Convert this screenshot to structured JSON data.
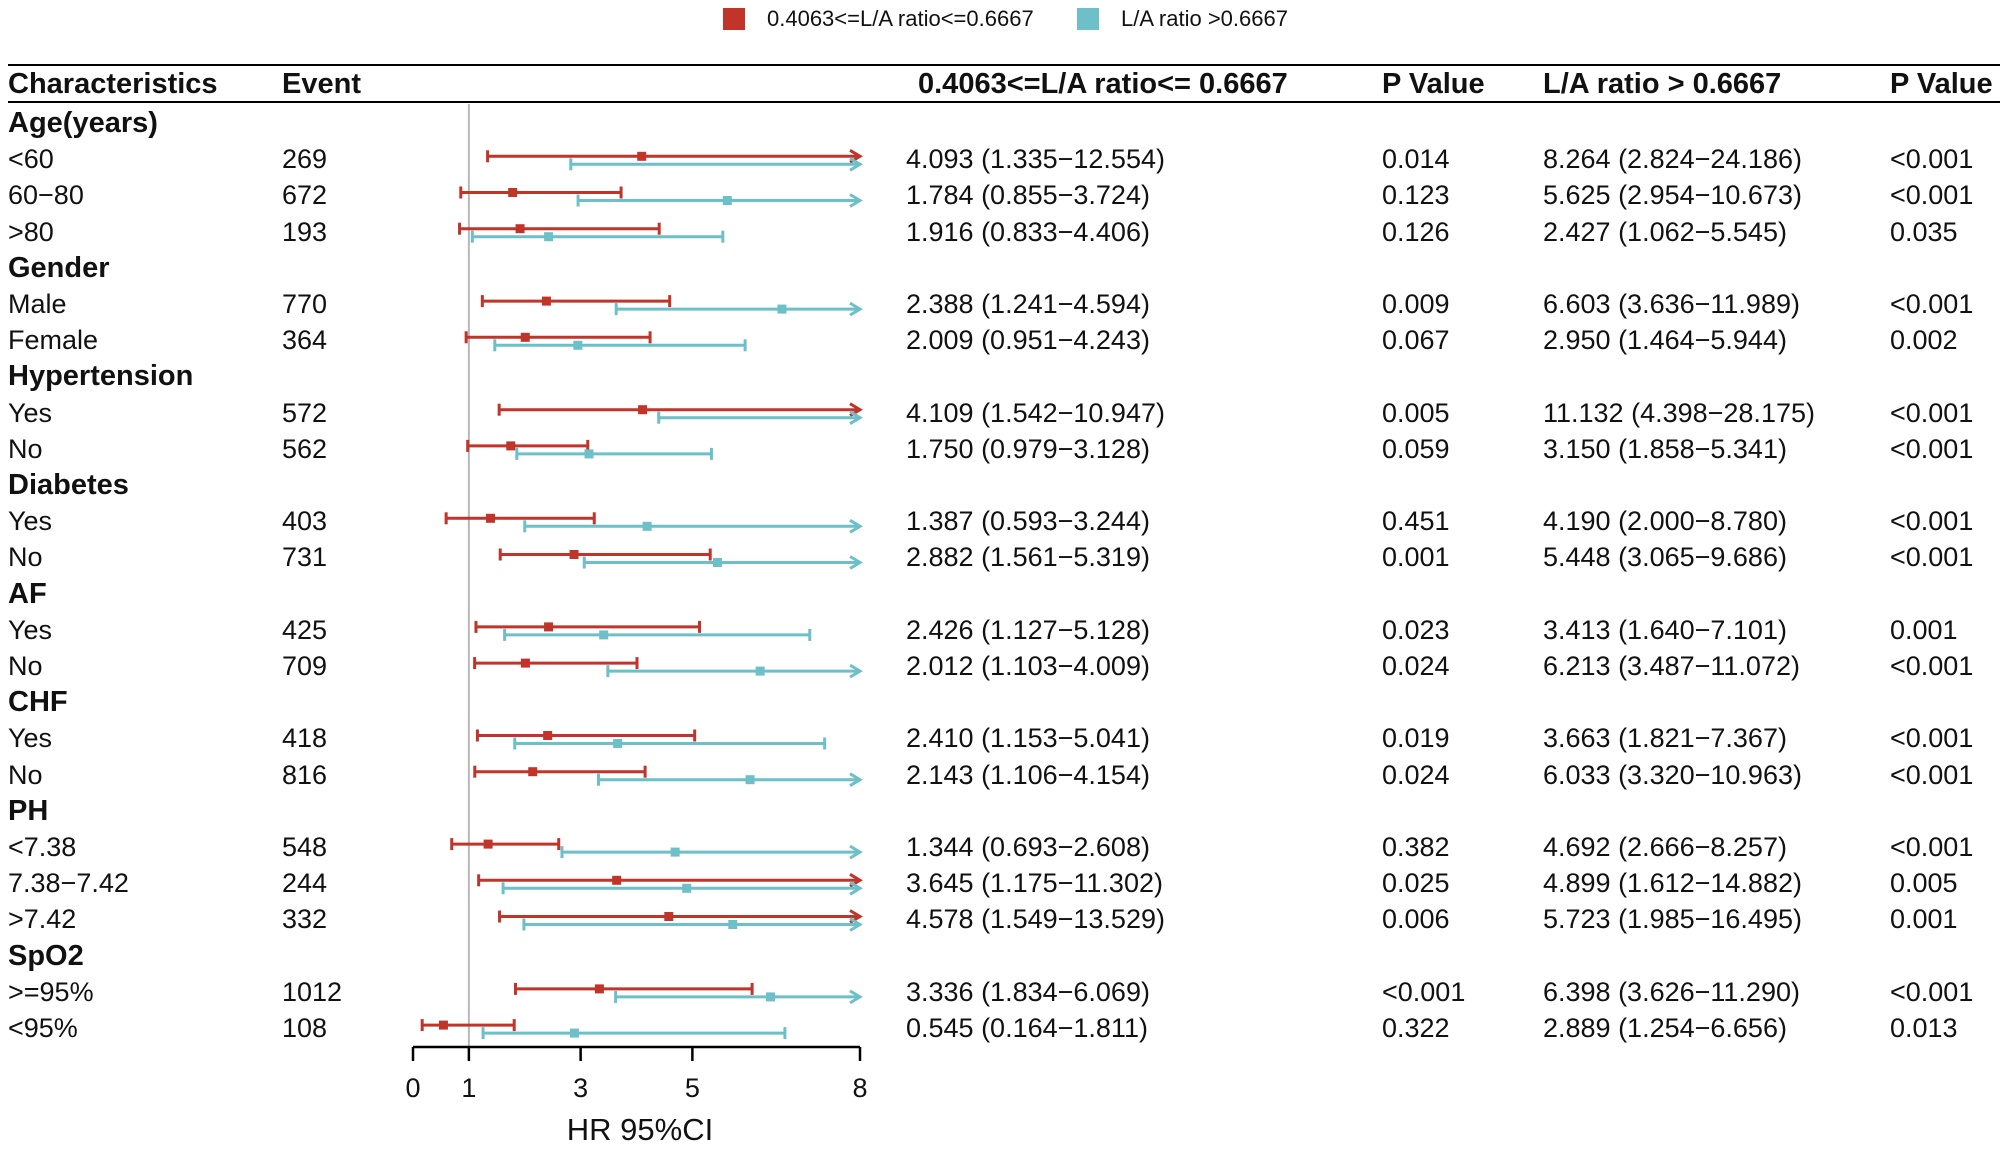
{
  "legend": {
    "mid": {
      "label": "0.4063<=L/A ratio<=0.6667",
      "color": "#c0342a"
    },
    "high": {
      "label": "L/A ratio >0.6667",
      "color": "#6dbfc8"
    }
  },
  "headers": {
    "characteristics": "Characteristics",
    "event": "Event",
    "mid_hr": "0.4063<=L/A ratio<= 0.6667",
    "mid_p": "P Value",
    "high_hr": "L/A ratio >  0.6667",
    "high_p": "P Value"
  },
  "rows": [
    {
      "type": "group",
      "label": "Age(years)"
    },
    {
      "type": "sub",
      "label": "<60",
      "event": "269",
      "mid_text": "4.093 (1.335−12.554)",
      "mid_p": "0.014",
      "high_text": "8.264 (2.824−24.186)",
      "high_p": "<0.001"
    },
    {
      "type": "sub",
      "label": "60−80",
      "event": "672",
      "mid_text": "1.784 (0.855−3.724)",
      "mid_p": "0.123",
      "high_text": "5.625 (2.954−10.673)",
      "high_p": "<0.001"
    },
    {
      "type": "sub",
      "label": ">80",
      "event": "193",
      "mid_text": "1.916 (0.833−4.406)",
      "mid_p": "0.126",
      "high_text": "2.427 (1.062−5.545)",
      "high_p": "0.035"
    },
    {
      "type": "group",
      "label": "Gender"
    },
    {
      "type": "sub",
      "label": "Male",
      "event": "770",
      "mid_text": "2.388 (1.241−4.594)",
      "mid_p": "0.009",
      "high_text": "6.603 (3.636−11.989)",
      "high_p": "<0.001"
    },
    {
      "type": "sub",
      "label": "Female",
      "event": "364",
      "mid_text": "2.009 (0.951−4.243)",
      "mid_p": "0.067",
      "high_text": "2.950 (1.464−5.944)",
      "high_p": "0.002"
    },
    {
      "type": "group",
      "label": "Hypertension"
    },
    {
      "type": "sub",
      "label": "Yes",
      "event": "572",
      "mid_text": "4.109 (1.542−10.947)",
      "mid_p": "0.005",
      "high_text": "11.132 (4.398−28.175)",
      "high_p": "<0.001"
    },
    {
      "type": "sub",
      "label": "No",
      "event": "562",
      "mid_text": "1.750 (0.979−3.128)",
      "mid_p": "0.059",
      "high_text": "3.150 (1.858−5.341)",
      "high_p": "<0.001"
    },
    {
      "type": "group",
      "label": "Diabetes"
    },
    {
      "type": "sub",
      "label": "Yes",
      "event": "403",
      "mid_text": "1.387 (0.593−3.244)",
      "mid_p": "0.451",
      "high_text": "4.190 (2.000−8.780)",
      "high_p": "<0.001"
    },
    {
      "type": "sub",
      "label": "No",
      "event": "731",
      "mid_text": "2.882 (1.561−5.319)",
      "mid_p": "0.001",
      "high_text": "5.448 (3.065−9.686)",
      "high_p": "<0.001"
    },
    {
      "type": "group",
      "label": "AF"
    },
    {
      "type": "sub",
      "label": "Yes",
      "event": "425",
      "mid_text": "2.426 (1.127−5.128)",
      "mid_p": "0.023",
      "high_text": "3.413 (1.640−7.101)",
      "high_p": "0.001"
    },
    {
      "type": "sub",
      "label": "No",
      "event": "709",
      "mid_text": "2.012 (1.103−4.009)",
      "mid_p": "0.024",
      "high_text": "6.213 (3.487−11.072)",
      "high_p": "<0.001"
    },
    {
      "type": "group",
      "label": "CHF"
    },
    {
      "type": "sub",
      "label": "Yes",
      "event": "418",
      "mid_text": "2.410 (1.153−5.041)",
      "mid_p": "0.019",
      "high_text": "3.663 (1.821−7.367)",
      "high_p": "<0.001"
    },
    {
      "type": "sub",
      "label": "No",
      "event": "816",
      "mid_text": "2.143 (1.106−4.154)",
      "mid_p": "0.024",
      "high_text": "6.033 (3.320−10.963)",
      "high_p": "<0.001"
    },
    {
      "type": "group",
      "label": "PH"
    },
    {
      "type": "sub",
      "label": "<7.38",
      "event": "548",
      "mid_text": "1.344 (0.693−2.608)",
      "mid_p": "0.382",
      "high_text": "4.692 (2.666−8.257)",
      "high_p": "<0.001"
    },
    {
      "type": "sub",
      "label": "7.38−7.42",
      "event": "244",
      "mid_text": "3.645 (1.175−11.302)",
      "mid_p": "0.025",
      "high_text": "4.899 (1.612−14.882)",
      "high_p": "0.005"
    },
    {
      "type": "sub",
      "label": ">7.42",
      "event": "332",
      "mid_text": "4.578 (1.549−13.529)",
      "mid_p": "0.006",
      "high_text": "5.723 (1.985−16.495)",
      "high_p": "0.001"
    },
    {
      "type": "group",
      "label": "SpO2"
    },
    {
      "type": "sub",
      "label": ">=95%",
      "event": "1012",
      "mid_text": "3.336 (1.834−6.069)",
      "mid_p": "<0.001",
      "high_text": "6.398 (3.626−11.290)",
      "high_p": "<0.001"
    },
    {
      "type": "sub",
      "label": "<95%",
      "event": "108",
      "mid_text": "0.545 (0.164−1.811)",
      "mid_p": "0.322",
      "high_text": "2.889 (1.254−6.656)",
      "high_p": "0.013"
    }
  ],
  "chart_data": {
    "type": "forest",
    "x_axis": {
      "ticks": [
        0,
        1,
        3,
        5,
        8
      ],
      "range": [
        0,
        8
      ],
      "reference": 1,
      "label": "HR 95%CI"
    },
    "series": [
      {
        "name": "0.4063<=L/A ratio<=0.6667",
        "color": "#c0342a",
        "points": [
          {
            "hr": 4.093,
            "lo": 1.335,
            "hi": 12.554
          },
          {
            "hr": 1.784,
            "lo": 0.855,
            "hi": 3.724
          },
          {
            "hr": 1.916,
            "lo": 0.833,
            "hi": 4.406
          },
          {
            "hr": 2.388,
            "lo": 1.241,
            "hi": 4.594
          },
          {
            "hr": 2.009,
            "lo": 0.951,
            "hi": 4.243
          },
          {
            "hr": 4.109,
            "lo": 1.542,
            "hi": 10.947
          },
          {
            "hr": 1.75,
            "lo": 0.979,
            "hi": 3.128
          },
          {
            "hr": 1.387,
            "lo": 0.593,
            "hi": 3.244
          },
          {
            "hr": 2.882,
            "lo": 1.561,
            "hi": 5.319
          },
          {
            "hr": 2.426,
            "lo": 1.127,
            "hi": 5.128
          },
          {
            "hr": 2.012,
            "lo": 1.103,
            "hi": 4.009
          },
          {
            "hr": 2.41,
            "lo": 1.153,
            "hi": 5.041
          },
          {
            "hr": 2.143,
            "lo": 1.106,
            "hi": 4.154
          },
          {
            "hr": 1.344,
            "lo": 0.693,
            "hi": 2.608
          },
          {
            "hr": 3.645,
            "lo": 1.175,
            "hi": 11.302
          },
          {
            "hr": 4.578,
            "lo": 1.549,
            "hi": 13.529
          },
          {
            "hr": 3.336,
            "lo": 1.834,
            "hi": 6.069
          },
          {
            "hr": 0.545,
            "lo": 0.164,
            "hi": 1.811
          }
        ]
      },
      {
        "name": "L/A ratio >0.6667",
        "color": "#6dbfc8",
        "points": [
          {
            "hr": 8.264,
            "lo": 2.824,
            "hi": 24.186
          },
          {
            "hr": 5.625,
            "lo": 2.954,
            "hi": 10.673
          },
          {
            "hr": 2.427,
            "lo": 1.062,
            "hi": 5.545
          },
          {
            "hr": 6.603,
            "lo": 3.636,
            "hi": 11.989
          },
          {
            "hr": 2.95,
            "lo": 1.464,
            "hi": 5.944
          },
          {
            "hr": 11.132,
            "lo": 4.398,
            "hi": 28.175
          },
          {
            "hr": 3.15,
            "lo": 1.858,
            "hi": 5.341
          },
          {
            "hr": 4.19,
            "lo": 2.0,
            "hi": 8.78
          },
          {
            "hr": 5.448,
            "lo": 3.065,
            "hi": 9.686
          },
          {
            "hr": 3.413,
            "lo": 1.64,
            "hi": 7.101
          },
          {
            "hr": 6.213,
            "lo": 3.487,
            "hi": 11.072
          },
          {
            "hr": 3.663,
            "lo": 1.821,
            "hi": 7.367
          },
          {
            "hr": 6.033,
            "lo": 3.32,
            "hi": 10.963
          },
          {
            "hr": 4.692,
            "lo": 2.666,
            "hi": 8.257
          },
          {
            "hr": 4.899,
            "lo": 1.612,
            "hi": 14.882
          },
          {
            "hr": 5.723,
            "lo": 1.985,
            "hi": 16.495
          },
          {
            "hr": 6.398,
            "lo": 3.626,
            "hi": 11.29
          },
          {
            "hr": 2.889,
            "lo": 1.254,
            "hi": 6.656
          }
        ]
      }
    ]
  }
}
